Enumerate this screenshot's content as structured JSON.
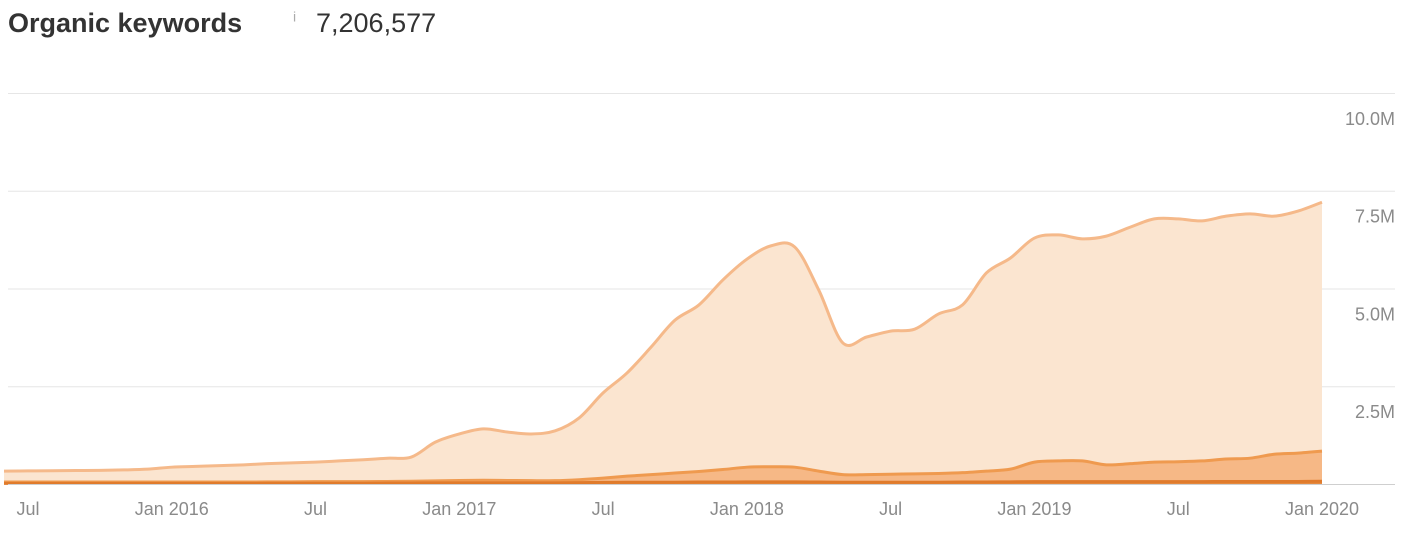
{
  "chart_data": {
    "type": "area",
    "title": "Organic keywords",
    "info_icon": "i",
    "summary_value": "7,206,577",
    "x": [
      "2015-06",
      "2015-07",
      "2015-08",
      "2015-09",
      "2015-10",
      "2015-11",
      "2015-12",
      "2016-01",
      "2016-02",
      "2016-03",
      "2016-04",
      "2016-05",
      "2016-06",
      "2016-07",
      "2016-08",
      "2016-09",
      "2016-10",
      "2016-11",
      "2016-12",
      "2017-01",
      "2017-02",
      "2017-03",
      "2017-04",
      "2017-05",
      "2017-06",
      "2017-07",
      "2017-08",
      "2017-09",
      "2017-10",
      "2017-11",
      "2017-12",
      "2018-01",
      "2018-02",
      "2018-03",
      "2018-04",
      "2018-05",
      "2018-06",
      "2018-07",
      "2018-08",
      "2018-09",
      "2018-10",
      "2018-11",
      "2018-12",
      "2019-01",
      "2019-02",
      "2019-03",
      "2019-04",
      "2019-05",
      "2019-06",
      "2019-07",
      "2019-08",
      "2019-09",
      "2019-10",
      "2019-11",
      "2019-12",
      "2020-01"
    ],
    "series": [
      {
        "color": "#f5b98a",
        "fill": "#fbe5d0",
        "values": [
          330000,
          335000,
          340000,
          345000,
          350000,
          360000,
          380000,
          430000,
          450000,
          470000,
          490000,
          520000,
          540000,
          560000,
          590000,
          620000,
          660000,
          690000,
          1070000,
          1280000,
          1410000,
          1330000,
          1280000,
          1360000,
          1690000,
          2330000,
          2840000,
          3500000,
          4190000,
          4580000,
          5220000,
          5750000,
          6090000,
          6060000,
          4960000,
          3610000,
          3760000,
          3910000,
          3960000,
          4350000,
          4580000,
          5400000,
          5780000,
          6290000,
          6370000,
          6270000,
          6340000,
          6570000,
          6780000,
          6780000,
          6730000,
          6850000,
          6910000,
          6850000,
          6980000,
          7206577
        ]
      },
      {
        "color": "#ef9a4f",
        "fill": "#f6b886",
        "values": [
          50000,
          50000,
          50000,
          50000,
          50000,
          50000,
          50000,
          50000,
          50000,
          50000,
          50000,
          55000,
          55000,
          60000,
          60000,
          60000,
          65000,
          70000,
          80000,
          90000,
          95000,
          90000,
          85000,
          85000,
          110000,
          150000,
          200000,
          240000,
          280000,
          320000,
          370000,
          430000,
          440000,
          430000,
          330000,
          240000,
          240000,
          250000,
          260000,
          270000,
          290000,
          330000,
          380000,
          560000,
          590000,
          590000,
          490000,
          520000,
          560000,
          570000,
          590000,
          640000,
          660000,
          760000,
          790000,
          840000
        ]
      },
      {
        "color": "#e07b2c",
        "fill": "#e58a40",
        "values": [
          15000,
          15000,
          15000,
          15000,
          15000,
          15000,
          15000,
          15000,
          15000,
          15000,
          15000,
          20000,
          20000,
          20000,
          20000,
          20000,
          25000,
          25000,
          30000,
          30000,
          30000,
          30000,
          30000,
          30000,
          35000,
          40000,
          45000,
          45000,
          45000,
          50000,
          50000,
          55000,
          55000,
          55000,
          50000,
          45000,
          45000,
          45000,
          45000,
          45000,
          50000,
          50000,
          55000,
          60000,
          60000,
          60000,
          60000,
          60000,
          60000,
          60000,
          60000,
          65000,
          65000,
          65000,
          65000,
          70000
        ]
      }
    ],
    "xlim": [
      "2015-06",
      "2020-01"
    ],
    "xticks": [
      {
        "value": "2015-07",
        "label": "Jul"
      },
      {
        "value": "2016-01",
        "label": "Jan 2016"
      },
      {
        "value": "2016-07",
        "label": "Jul"
      },
      {
        "value": "2017-01",
        "label": "Jan 2017"
      },
      {
        "value": "2017-07",
        "label": "Jul"
      },
      {
        "value": "2018-01",
        "label": "Jan 2018"
      },
      {
        "value": "2018-07",
        "label": "Jul"
      },
      {
        "value": "2019-01",
        "label": "Jan 2019"
      },
      {
        "value": "2019-07",
        "label": "Jul"
      },
      {
        "value": "2020-01",
        "label": "Jan 2020"
      }
    ],
    "ylim": [
      0,
      10000000
    ],
    "yticks": [
      {
        "value": 2500000,
        "label": "2.5M"
      },
      {
        "value": 5000000,
        "label": "5.0M"
      },
      {
        "value": 7500000,
        "label": "7.5M"
      },
      {
        "value": 10000000,
        "label": "10.0M"
      }
    ],
    "grid": true
  }
}
